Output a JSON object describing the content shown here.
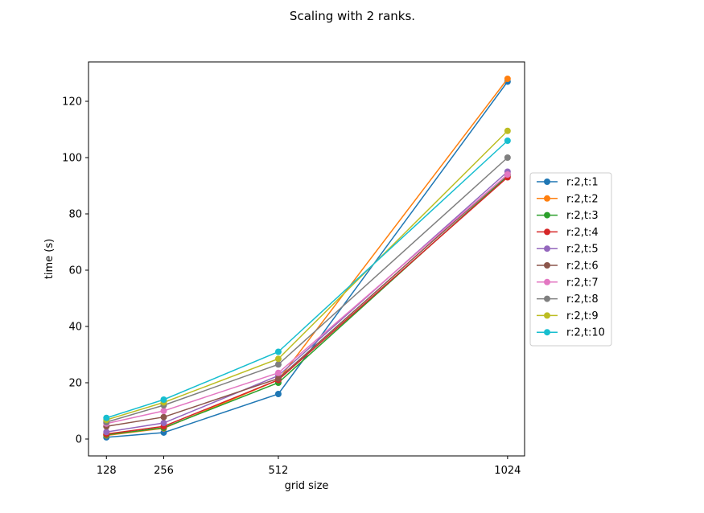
{
  "chart_data": {
    "type": "line",
    "title": "Scaling with 2 ranks.",
    "xlabel": "grid size",
    "ylabel": "time (s)",
    "x": [
      128,
      256,
      512,
      1024
    ],
    "xlim": [
      88,
      1062
    ],
    "ylim": [
      -6,
      134
    ],
    "xticks": [
      128,
      256,
      512,
      1024
    ],
    "yticks": [
      0,
      20,
      40,
      60,
      80,
      100,
      120
    ],
    "grid": false,
    "legend_position": "center-right outside",
    "series": [
      {
        "name": "r:2,t:1",
        "color": "#1f77b4",
        "values": [
          0.6,
          2.3,
          16.0,
          127.0
        ]
      },
      {
        "name": "r:2,t:2",
        "color": "#ff7f0e",
        "values": [
          1.3,
          3.8,
          21.0,
          128.0
        ]
      },
      {
        "name": "r:2,t:3",
        "color": "#2ca02c",
        "values": [
          1.5,
          4.0,
          20.0,
          93.5
        ]
      },
      {
        "name": "r:2,t:4",
        "color": "#d62728",
        "values": [
          1.8,
          4.5,
          21.0,
          93.0
        ]
      },
      {
        "name": "r:2,t:5",
        "color": "#9467bd",
        "values": [
          2.5,
          5.7,
          22.5,
          95.0
        ]
      },
      {
        "name": "r:2,t:6",
        "color": "#8c564b",
        "values": [
          4.5,
          7.8,
          21.5,
          94.0
        ]
      },
      {
        "name": "r:2,t:7",
        "color": "#e377c2",
        "values": [
          5.5,
          10.0,
          23.5,
          94.0
        ]
      },
      {
        "name": "r:2,t:8",
        "color": "#7f7f7f",
        "values": [
          6.0,
          12.0,
          26.5,
          100.0
        ]
      },
      {
        "name": "r:2,t:9",
        "color": "#bcbd22",
        "values": [
          6.8,
          13.0,
          28.5,
          109.5
        ]
      },
      {
        "name": "r:2,t:10",
        "color": "#17becf",
        "values": [
          7.5,
          14.0,
          31.0,
          106.0
        ]
      }
    ]
  }
}
